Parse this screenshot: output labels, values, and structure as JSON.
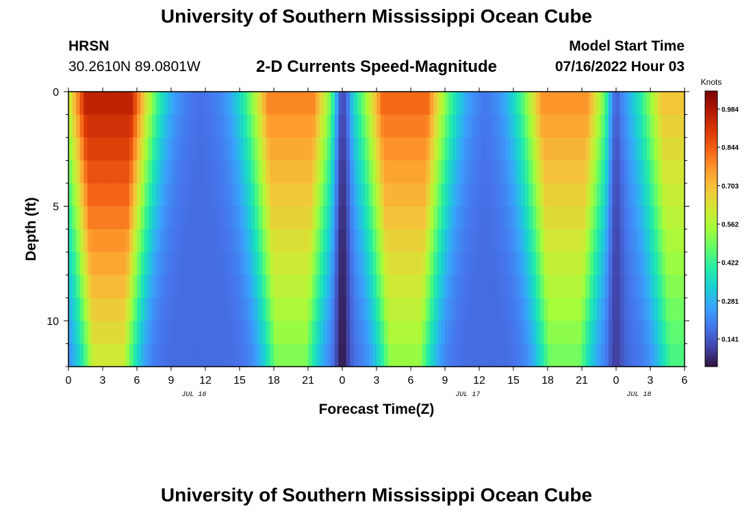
{
  "header": {
    "title": "University of Southern Mississippi Ocean Cube",
    "station": "HRSN",
    "coords": "30.2610N  89.0801W",
    "subtitle": "2-D Currents Speed-Magnitude",
    "model_label": "Model Start Time",
    "model_time": "07/16/2022 Hour 03"
  },
  "footer": {
    "title": "University of Southern Mississippi Ocean Cube"
  },
  "chart_data": {
    "type": "heatmap",
    "xlabel": "Forecast Time(Z)",
    "ylabel": "Depth (ft)",
    "x_tick_labels": [
      "0",
      "3",
      "6",
      "9",
      "12",
      "15",
      "18",
      "21",
      "0",
      "3",
      "6",
      "9",
      "12",
      "15",
      "18",
      "21",
      "0",
      "3",
      "6"
    ],
    "date_labels": [
      {
        "label": "JUL 16",
        "at_hour": 11
      },
      {
        "label": "JUL 17",
        "at_hour": 35
      },
      {
        "label": "JUL 18",
        "at_hour": 50
      }
    ],
    "x_range_hours": [
      0,
      54
    ],
    "y_ticks": [
      0,
      5,
      10
    ],
    "ylim": [
      0,
      12
    ],
    "colorbar": {
      "unit": "Knots",
      "ticks": [
        "0.984",
        "0.844",
        "0.703",
        "0.562",
        "0.422",
        "0.281",
        "0.141"
      ],
      "tick_values": [
        0.984,
        0.844,
        0.703,
        0.562,
        0.422,
        0.281,
        0.141
      ],
      "range": [
        0.04,
        1.05
      ],
      "colormap": [
        "#30123b",
        "#4145ab",
        "#4675ed",
        "#39a2fc",
        "#1bcfd4",
        "#24eca6",
        "#61fc6c",
        "#a4fc3b",
        "#d1e834",
        "#f3c63a",
        "#fe9b2d",
        "#f36315",
        "#d93806",
        "#b11901",
        "#7a0403"
      ]
    },
    "speed_profile_note": "surface speed (knots) by forecast hour, with depth-dependent narrowing",
    "peaks": [
      {
        "center_hour": 3.5,
        "amplitude": 0.97
      },
      {
        "center_hour": 19.5,
        "amplitude": 0.8
      },
      {
        "center_hour": 29.5,
        "amplitude": 0.84
      },
      {
        "center_hour": 43.5,
        "amplitude": 0.78
      },
      {
        "center_hour": 54.0,
        "amplitude": 0.7
      }
    ],
    "minima": [
      {
        "center_hour": 24.0,
        "value": 0.05
      },
      {
        "center_hour": 48.0,
        "value": 0.1
      }
    ]
  }
}
